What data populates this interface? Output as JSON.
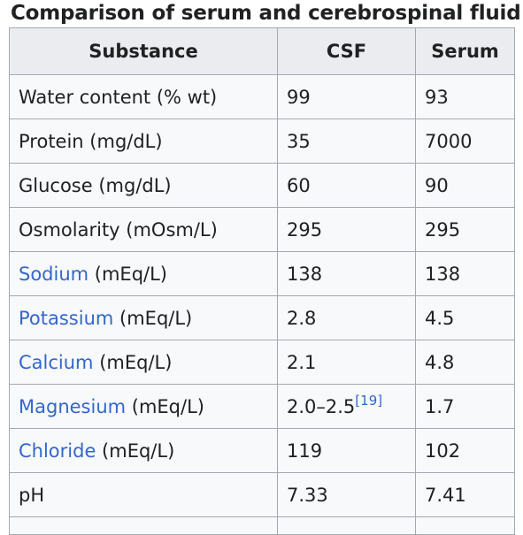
{
  "table": {
    "caption": "Comparison of serum and cerebrospinal fluid",
    "headers": [
      "Substance",
      "CSF",
      "Serum"
    ],
    "rows": [
      {
        "link": "",
        "unit": "Water content (% wt)",
        "csf": "99",
        "ref": "",
        "serum": "93"
      },
      {
        "link": "",
        "unit": "Protein (mg/dL)",
        "csf": "35",
        "ref": "",
        "serum": "7000"
      },
      {
        "link": "",
        "unit": "Glucose (mg/dL)",
        "csf": "60",
        "ref": "",
        "serum": "90"
      },
      {
        "link": "",
        "unit": "Osmolarity (mOsm/L)",
        "csf": "295",
        "ref": "",
        "serum": "295"
      },
      {
        "link": "Sodium",
        "unit": " (mEq/L)",
        "csf": "138",
        "ref": "",
        "serum": "138"
      },
      {
        "link": "Potassium",
        "unit": " (mEq/L)",
        "csf": "2.8",
        "ref": "",
        "serum": "4.5"
      },
      {
        "link": "Calcium",
        "unit": " (mEq/L)",
        "csf": "2.1",
        "ref": "",
        "serum": "4.8"
      },
      {
        "link": "Magnesium",
        "unit": " (mEq/L)",
        "csf": "2.0–2.5",
        "ref": "[19]",
        "serum": "1.7"
      },
      {
        "link": "Chloride",
        "unit": " (mEq/L)",
        "csf": "119",
        "ref": "",
        "serum": "102"
      },
      {
        "link": "",
        "unit": "pH",
        "csf": "7.33",
        "ref": "",
        "serum": "7.41"
      }
    ]
  },
  "colors": {
    "link": "#3366cc",
    "header_bg": "#eaecf0",
    "cell_bg": "#f8f9fa",
    "border": "#a2a9b1"
  }
}
